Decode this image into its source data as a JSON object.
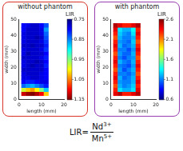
{
  "chart_data": [
    {
      "type": "heatmap",
      "title": "without phantom",
      "xlabel": "length (mm)",
      "ylabel": "width (mm)",
      "xlim": [
        0,
        20
      ],
      "xticks": [
        0,
        10,
        20
      ],
      "ylim": [
        0,
        50
      ],
      "yticks": [
        0,
        10,
        20,
        30,
        40,
        50
      ],
      "x": [
        2,
        4,
        6,
        8,
        10,
        12
      ],
      "y": [
        3.75,
        6.25,
        8.75,
        11.25,
        13.75,
        16.25,
        18.75,
        21.25,
        23.75,
        26.25,
        28.75,
        31.25,
        33.75,
        36.25,
        38.75,
        41.25,
        43.75,
        46.25
      ],
      "cells": [
        [
          1.12,
          1.14,
          1.15,
          1.13,
          1.1,
          1.02
        ],
        [
          0.98,
          1.02,
          1.04,
          1.0,
          0.95,
          0.88
        ],
        [
          0.84,
          0.86,
          0.87,
          0.85,
          0.83,
          0.81
        ],
        [
          0.8,
          0.81,
          0.81,
          0.8,
          0.79,
          0.79
        ],
        [
          0.79,
          0.79,
          0.78,
          0.78,
          0.79,
          0.8
        ],
        [
          0.79,
          0.78,
          0.78,
          0.78,
          0.79,
          0.8
        ],
        [
          0.78,
          0.78,
          0.78,
          0.78,
          0.78,
          0.8
        ],
        [
          0.79,
          0.78,
          0.77,
          0.78,
          0.78,
          0.81
        ],
        [
          0.79,
          0.78,
          0.78,
          0.77,
          0.78,
          0.8
        ],
        [
          0.78,
          0.78,
          0.78,
          0.78,
          0.79,
          0.81
        ],
        [
          0.79,
          0.77,
          0.78,
          0.78,
          0.78,
          0.8
        ],
        [
          0.79,
          0.78,
          0.78,
          0.78,
          0.79,
          0.82
        ],
        [
          0.78,
          0.78,
          0.77,
          0.78,
          0.78,
          0.81
        ],
        [
          0.79,
          0.78,
          0.78,
          0.78,
          0.79,
          0.82
        ],
        [
          0.79,
          0.78,
          0.78,
          0.77,
          0.78,
          0.83
        ],
        [
          0.79,
          0.78,
          0.78,
          0.78,
          0.79,
          0.84
        ],
        [
          0.8,
          0.78,
          0.78,
          0.78,
          0.79,
          0.86
        ],
        [
          0.8,
          0.79,
          0.78,
          0.78,
          0.8,
          0.83
        ]
      ],
      "colorbar": {
        "label": "LIR",
        "range": [
          1.15,
          0.75
        ],
        "ticks": [
          0.75,
          0.85,
          0.95,
          1.05,
          1.15
        ]
      }
    },
    {
      "type": "heatmap",
      "title": "with phantom",
      "xlabel": "length (mm)",
      "ylabel": "width (mm)",
      "xlim": [
        0,
        20
      ],
      "xticks": [
        0,
        10,
        20
      ],
      "ylim": [
        0,
        50
      ],
      "yticks": [
        0,
        10,
        20,
        30,
        40,
        50
      ],
      "x": [
        2,
        4,
        6,
        8,
        10,
        12
      ],
      "y": [
        3.75,
        6.25,
        8.75,
        11.25,
        13.75,
        16.25,
        18.75,
        21.25,
        23.75,
        26.25,
        28.75,
        31.25,
        33.75,
        36.25,
        38.75,
        41.25,
        43.75,
        46.25
      ],
      "cells": [
        [
          2.4,
          2.5,
          2.3,
          2.3,
          2.4,
          2.5
        ],
        [
          2.3,
          1.3,
          1.2,
          1.2,
          1.3,
          2.4
        ],
        [
          2.2,
          1.2,
          1.1,
          1.15,
          1.25,
          2.3
        ],
        [
          2.3,
          1.15,
          1.1,
          1.1,
          1.2,
          2.4
        ],
        [
          2.4,
          1.2,
          1.05,
          1.1,
          1.2,
          2.3
        ],
        [
          2.3,
          1.1,
          1.1,
          1.05,
          1.15,
          2.2
        ],
        [
          2.2,
          1.15,
          1.0,
          1.1,
          1.2,
          2.3
        ],
        [
          2.3,
          1.1,
          1.05,
          1.0,
          1.15,
          2.4
        ],
        [
          2.4,
          1.2,
          1.1,
          1.05,
          1.2,
          2.3
        ],
        [
          2.3,
          1.1,
          1.0,
          1.1,
          1.15,
          2.2
        ],
        [
          2.2,
          1.15,
          1.05,
          1.05,
          1.2,
          2.3
        ],
        [
          2.3,
          1.1,
          1.1,
          1.0,
          1.15,
          2.4
        ],
        [
          2.4,
          1.2,
          1.05,
          1.1,
          1.2,
          2.3
        ],
        [
          2.3,
          1.15,
          1.1,
          1.05,
          1.25,
          2.2
        ],
        [
          2.2,
          1.2,
          1.1,
          1.1,
          1.2,
          2.3
        ],
        [
          2.3,
          1.25,
          1.15,
          1.1,
          1.3,
          2.4
        ],
        [
          2.4,
          1.3,
          1.2,
          1.2,
          1.35,
          2.3
        ],
        [
          2.5,
          2.4,
          2.3,
          2.3,
          2.4,
          2.5
        ]
      ],
      "colorbar": {
        "label": "LIR",
        "range": [
          0.6,
          2.6
        ],
        "ticks": [
          0.6,
          1.1,
          1.6,
          2.1,
          2.6
        ]
      }
    }
  ],
  "formula": {
    "lhs": "LIR=",
    "numerator": {
      "base": "Nd",
      "sup": "3+"
    },
    "denominator": {
      "base": "Mn",
      "sup": "5+"
    }
  }
}
